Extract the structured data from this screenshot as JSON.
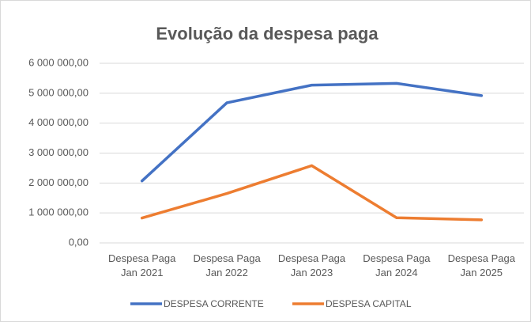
{
  "chart_data": {
    "type": "line",
    "title": "Evolução da despesa paga",
    "categories": [
      "Despesa Paga Jan 2021",
      "Despesa Paga Jan 2022",
      "Despesa Paga Jan 2023",
      "Despesa Paga Jan 2024",
      "Despesa Paga Jan 2025"
    ],
    "series": [
      {
        "name": "DESPESA CORRENTE",
        "color": "#4472c4",
        "values": [
          2070000,
          4680000,
          5270000,
          5330000,
          4920000
        ]
      },
      {
        "name": "DESPESA CAPITAL",
        "color": "#ed7d31",
        "values": [
          830000,
          1650000,
          2580000,
          840000,
          770000
        ]
      }
    ],
    "ylim": [
      0,
      6000000
    ],
    "yticks": [
      {
        "value": 0,
        "label": "0,00"
      },
      {
        "value": 1000000,
        "label": "1 000 000,00"
      },
      {
        "value": 2000000,
        "label": "2 000 000,00"
      },
      {
        "value": 3000000,
        "label": "3 000 000,00"
      },
      {
        "value": 4000000,
        "label": "4 000 000,00"
      },
      {
        "value": 5000000,
        "label": "5 000 000,00"
      },
      {
        "value": 6000000,
        "label": "6 000 000,00"
      }
    ],
    "grid": true,
    "legend": "bottom"
  }
}
